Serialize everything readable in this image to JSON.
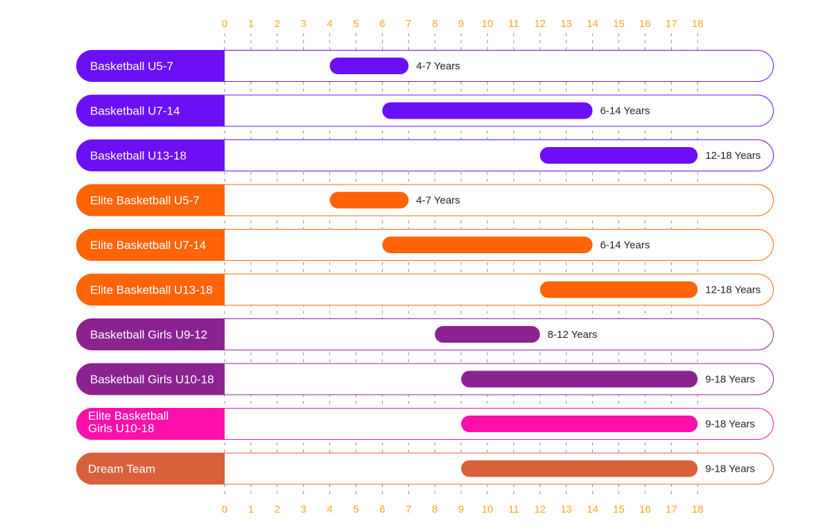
{
  "chart_data": {
    "type": "bar",
    "orientation": "horizontal-range",
    "title": "",
    "xlabel": "",
    "ylabel": "",
    "xlim": [
      0,
      18
    ],
    "x_ticks": [
      "0",
      "1",
      "2",
      "3",
      "4",
      "5",
      "6",
      "7",
      "8",
      "9",
      "10",
      "11",
      "12",
      "13",
      "14",
      "15",
      "16",
      "17",
      "18"
    ],
    "grid": "dashed vertical lines at each tick",
    "rows": [
      {
        "label": "Basketball U5-7",
        "start": 4,
        "end": 7,
        "bar_label": "4-7 Years",
        "color": "#6b0ff5"
      },
      {
        "label": "Basketball U7-14",
        "start": 6,
        "end": 14,
        "bar_label": "6-14 Years",
        "color": "#6b0ff5"
      },
      {
        "label": "Basketball U13-18",
        "start": 12,
        "end": 18,
        "bar_label": "12-18 Years",
        "color": "#6b0ff5"
      },
      {
        "label": "Elite Basketball U5-7",
        "start": 4,
        "end": 7,
        "bar_label": "4-7 Years",
        "color": "#ff6407"
      },
      {
        "label": "Elite Basketball U7-14",
        "start": 6,
        "end": 14,
        "bar_label": "6-14 Years",
        "color": "#ff6407"
      },
      {
        "label": "Elite Basketball U13-18",
        "start": 12,
        "end": 18,
        "bar_label": "12-18 Years",
        "color": "#ff6407"
      },
      {
        "label": "Basketball Girls U9-12",
        "start": 8,
        "end": 12,
        "bar_label": "8-12 Years",
        "color": "#8a238f"
      },
      {
        "label": "Basketball Girls U10-18",
        "start": 9,
        "end": 18,
        "bar_label": "9-18 Years",
        "color": "#8a238f"
      },
      {
        "label": "Elite Basketball Girls U10-18",
        "label_lines": [
          "Elite Basketball",
          "Girls U10-18"
        ],
        "start": 9,
        "end": 18,
        "bar_label": "9-18 Years",
        "color": "#fd0fab"
      },
      {
        "label": "Dream Team",
        "start": 9,
        "end": 18,
        "bar_label": "9-18 Years",
        "color": "#d8603a"
      }
    ]
  },
  "colors": {
    "tick": "#f5a623",
    "grid": "#888888"
  }
}
